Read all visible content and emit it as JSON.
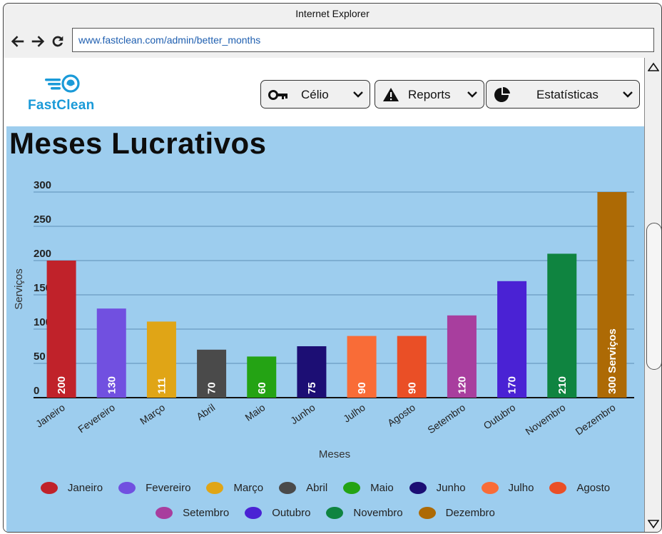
{
  "browser": {
    "title": "Internet Explorer",
    "url": "www.fastclean.com/admin/better_months"
  },
  "header": {
    "logo_text": "FastClean",
    "user_menu": {
      "label": "Célio",
      "icon": "key-icon"
    },
    "reports_menu": {
      "label": "Reports",
      "icon": "warning-icon"
    },
    "stats_menu": {
      "label": "Estatísticas",
      "icon": "pie-chart-icon"
    }
  },
  "page": {
    "title": "Meses Lucrativos"
  },
  "chart_data": {
    "type": "bar",
    "categories": [
      "Janeiro",
      "Fevereiro",
      "Março",
      "Abril",
      "Maio",
      "Junho",
      "Julho",
      "Agosto",
      "Setembro",
      "Outubro",
      "Novembro",
      "Dezembro"
    ],
    "values": [
      200,
      130,
      111,
      70,
      60,
      75,
      90,
      90,
      120,
      170,
      210,
      300
    ],
    "value_labels": [
      "200",
      "130",
      "111",
      "70",
      "60",
      "75",
      "90",
      "90",
      "120",
      "170",
      "210",
      "300 Serviços"
    ],
    "colors": [
      "#c0222a",
      "#7150e0",
      "#e0a516",
      "#4a4a4a",
      "#24a314",
      "#1c0e74",
      "#f96c37",
      "#ea4f26",
      "#a83e9e",
      "#4a22d4",
      "#0f8440",
      "#ad6a05"
    ],
    "xlabel": "Meses",
    "ylabel": "Serviços",
    "ylim": [
      0,
      300
    ],
    "yticks": [
      0,
      50,
      100,
      150,
      200,
      250,
      300
    ],
    "grid": true,
    "legend_position": "bottom"
  },
  "legend": {
    "row1": [
      {
        "label": "Janeiro",
        "color": "#c0222a"
      },
      {
        "label": "Fevereiro",
        "color": "#7150e0"
      },
      {
        "label": "Março",
        "color": "#e0a516"
      },
      {
        "label": "Abril",
        "color": "#4a4a4a"
      },
      {
        "label": "Maio",
        "color": "#24a314"
      },
      {
        "label": "Junho",
        "color": "#1c0e74"
      },
      {
        "label": "Julho",
        "color": "#f96c37"
      },
      {
        "label": "Agosto",
        "color": "#ea4f26"
      }
    ],
    "row2": [
      {
        "label": "Setembro",
        "color": "#a83e9e"
      },
      {
        "label": "Outubro",
        "color": "#4a22d4"
      },
      {
        "label": "Novembro",
        "color": "#0f8440"
      },
      {
        "label": "Dezembro",
        "color": "#ad6a05"
      }
    ]
  }
}
